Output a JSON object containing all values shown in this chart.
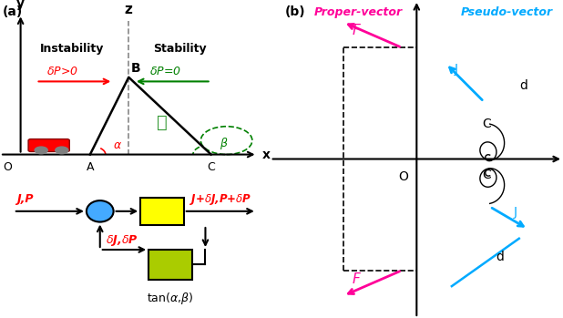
{
  "bg_color": "#ffffff",
  "panel_a_title": "(a)",
  "panel_b_title": "(b)",
  "instability_text": "Instability",
  "stability_text": "Stability",
  "dP_pos": "δP>0",
  "dP_zero": "δP=0",
  "proper_vector": "Proper-vector",
  "pseudo_vector": "Pseudo-vector",
  "red": "#ff0000",
  "green_dark": "#008000",
  "magenta": "#ff00aa",
  "cyan": "#00aaff",
  "yellow": "#ffff00",
  "lime": "#aacc00",
  "blue_circle": "#44aaff",
  "black": "#000000"
}
